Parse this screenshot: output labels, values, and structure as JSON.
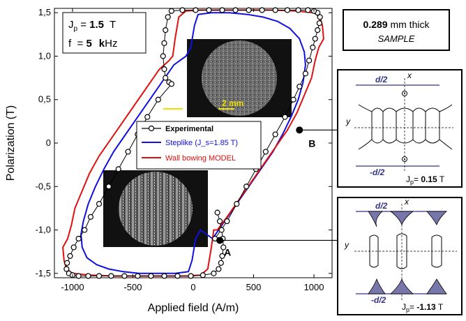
{
  "chart_data": {
    "type": "line",
    "xlabel": "Applied field   (A/m)",
    "ylabel": "Polarization   (T)",
    "xlim": [
      -1150,
      1150
    ],
    "ylim": [
      -1.55,
      1.55
    ],
    "xticks": [
      -1000,
      -500,
      0,
      500,
      1000
    ],
    "yticks": [
      -1.5,
      -1.0,
      -0.5,
      0,
      0.5,
      1.0,
      1.5
    ],
    "xtick_labels": [
      "-1000",
      "-500",
      "0",
      "500",
      "1000"
    ],
    "ytick_labels": [
      "-1,5",
      "-1,0",
      "-0,5",
      "0",
      "0,5",
      "1,0",
      "1,5"
    ],
    "grid": false,
    "legend_position": "center",
    "series": [
      {
        "name": "Experimental",
        "color": "#000000",
        "marker": "open-circle",
        "x": [
          180,
          280,
          360,
          440,
          520,
          600,
          680,
          760,
          830,
          880,
          930,
          960,
          990,
          1010,
          1030,
          1045,
          1050,
          1030,
          1000,
          950,
          870,
          780,
          680,
          570,
          460,
          350,
          240,
          130,
          20,
          -90,
          -180,
          -210,
          -230,
          -240,
          -250,
          -240,
          -230,
          -200,
          -180,
          -290,
          -380,
          -460,
          -540,
          -620,
          -700,
          -780,
          -850,
          -900,
          -950,
          -990,
          -1020,
          -1045,
          -1050,
          -1030,
          -1000,
          -950,
          -870,
          -780,
          -680,
          -570,
          -460,
          -350,
          -240,
          -130,
          -20,
          80,
          170,
          210,
          230,
          240,
          250,
          245,
          235,
          220,
          200
        ],
        "y": [
          -1.1,
          -0.9,
          -0.7,
          -0.5,
          -0.3,
          -0.1,
          0.1,
          0.3,
          0.5,
          0.65,
          0.8,
          0.95,
          1.1,
          1.2,
          1.3,
          1.38,
          1.45,
          1.5,
          1.52,
          1.53,
          1.53,
          1.53,
          1.53,
          1.53,
          1.53,
          1.53,
          1.53,
          1.53,
          1.53,
          1.53,
          1.52,
          1.45,
          1.3,
          1.15,
          1.0,
          0.85,
          0.75,
          0.7,
          0.68,
          0.5,
          0.3,
          0.1,
          -0.1,
          -0.3,
          -0.5,
          -0.7,
          -0.85,
          -1.0,
          -1.1,
          -1.2,
          -1.3,
          -1.38,
          -1.45,
          -1.5,
          -1.52,
          -1.53,
          -1.53,
          -1.53,
          -1.53,
          -1.53,
          -1.53,
          -1.53,
          -1.53,
          -1.53,
          -1.53,
          -1.52,
          -1.5,
          -1.45,
          -1.38,
          -1.3,
          -1.2,
          -1.1,
          -1.0,
          -0.9,
          -0.8
        ]
      },
      {
        "name": "Steplike (J_s=1.85 T)",
        "color": "#1010e0",
        "x": [
          160,
          260,
          360,
          460,
          560,
          660,
          740,
          810,
          870,
          910,
          930,
          920,
          880,
          800,
          700,
          580,
          450,
          300,
          150,
          40,
          10,
          -20,
          -60,
          -160,
          -260,
          -360,
          -460,
          -560,
          -660,
          -740,
          -810,
          -870,
          -910,
          -930,
          -920,
          -880,
          -800,
          -700,
          -580,
          -450,
          -300,
          -150,
          -40,
          -10,
          20,
          60,
          160
        ],
        "y": [
          -1.1,
          -0.9,
          -0.7,
          -0.5,
          -0.3,
          -0.1,
          0.1,
          0.3,
          0.5,
          0.7,
          0.9,
          1.05,
          1.2,
          1.32,
          1.4,
          1.45,
          1.48,
          1.5,
          1.5,
          1.48,
          1.35,
          1.1,
          1.0,
          0.9,
          0.7,
          0.5,
          0.3,
          0.1,
          -0.1,
          -0.3,
          -0.5,
          -0.7,
          -0.9,
          -1.05,
          -1.2,
          -1.32,
          -1.4,
          -1.45,
          -1.48,
          -1.5,
          -1.5,
          -1.5,
          -1.48,
          -1.35,
          -1.1,
          -1.0,
          -1.1
        ]
      },
      {
        "name": "Wall bowing MODEL",
        "color": "#e01010",
        "x": [
          200,
          280,
          380,
          480,
          580,
          680,
          780,
          860,
          920,
          980,
          1010,
          1040,
          1080,
          1070,
          1050,
          1000,
          850,
          650,
          450,
          250,
          60,
          -60,
          -120,
          -150,
          -170,
          -200,
          -280,
          -380,
          -480,
          -580,
          -680,
          -780,
          -860,
          -920,
          -980,
          -1010,
          -1040,
          -1080,
          -1070,
          -1050,
          -1000,
          -850,
          -650,
          -450,
          -250,
          -60,
          60,
          120,
          150,
          170,
          200
        ],
        "y": [
          -1.0,
          -0.85,
          -0.65,
          -0.45,
          -0.25,
          -0.05,
          0.15,
          0.35,
          0.55,
          0.75,
          0.95,
          1.1,
          1.2,
          1.35,
          1.45,
          1.5,
          1.52,
          1.53,
          1.53,
          1.53,
          1.53,
          1.52,
          1.45,
          1.2,
          1.0,
          0.95,
          0.85,
          0.65,
          0.45,
          0.25,
          0.05,
          -0.15,
          -0.35,
          -0.55,
          -0.75,
          -0.95,
          -1.1,
          -1.2,
          -1.35,
          -1.45,
          -1.5,
          -1.52,
          -1.53,
          -1.53,
          -1.53,
          -1.53,
          -1.52,
          -1.45,
          -1.2,
          -1.0,
          -1.0
        ]
      }
    ],
    "points": [
      {
        "label": "A",
        "x": 220,
        "y": -1.12
      },
      {
        "label": "B",
        "x": 880,
        "y": 0.15
      }
    ],
    "annotations": {
      "params": {
        "jp_prefix": "J",
        "jp_sub": "p",
        "jp_eq": " = ",
        "jp_val": "1.5",
        "jp_unit": "T",
        "f_prefix": "f  = ",
        "f_val": "5",
        "f_k": "k",
        "f_unit": "Hz"
      },
      "thickness": {
        "value": "0.289",
        "unit": " mm thick",
        "label": "SAMPLE"
      },
      "scale_bar": "2 mm"
    },
    "insets": [
      {
        "d_top": "d/2",
        "d_bottom": "-d/2",
        "axis_x": "x",
        "axis_y": "y",
        "jp_prefix": "J",
        "jp_sub": "p",
        "jp_eq": "= ",
        "jp_val": "0.15",
        "jp_unit": " T"
      },
      {
        "d_top": "d/2",
        "d_bottom": "-d/2",
        "axis_x": "x",
        "axis_y": "y",
        "jp_prefix": "J",
        "jp_sub": "p",
        "jp_eq": "= ",
        "jp_val": "-1.13",
        "jp_unit": " T"
      }
    ]
  }
}
